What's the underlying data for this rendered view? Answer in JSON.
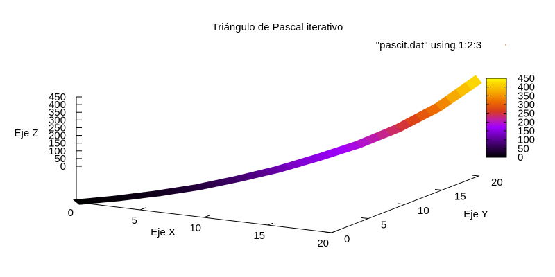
{
  "chart_data": {
    "type": "surface3d",
    "title": "Triángulo de Pascal iterativo",
    "xlabel": "Eje X",
    "ylabel": "Eje Y",
    "zlabel": "Eje Z",
    "legend": {
      "entry": "\"pascit.dat\" using 1:2:3",
      "placement": "top-right"
    },
    "xlim": [
      0,
      20
    ],
    "ylim": [
      0,
      20
    ],
    "zlim": [
      0,
      450
    ],
    "xticks": [
      "0",
      "5",
      "10",
      "15",
      "20"
    ],
    "yticks": [
      "0",
      "5",
      "10",
      "15",
      "20"
    ],
    "zticks": [
      "0",
      "50",
      "100",
      "150",
      "200",
      "250",
      "300",
      "350",
      "400",
      "450"
    ],
    "colorbar": {
      "range": [
        0,
        450
      ],
      "ticks": [
        "0",
        "50",
        "100",
        "150",
        "200",
        "250",
        "300",
        "350",
        "400",
        "450"
      ],
      "palette": [
        "#000000",
        "#3a0060",
        "#7b00c8",
        "#a000ff",
        "#c0209e",
        "#d83a1e",
        "#ec6a00",
        "#f6a800",
        "#fcd000",
        "#ffff00"
      ]
    },
    "surface_profile": {
      "x": [
        0,
        2,
        4,
        6,
        8,
        10,
        12,
        14,
        16,
        18,
        20
      ],
      "z": [
        0,
        5,
        15,
        30,
        55,
        85,
        125,
        170,
        230,
        310,
        420
      ]
    },
    "grid": false
  }
}
